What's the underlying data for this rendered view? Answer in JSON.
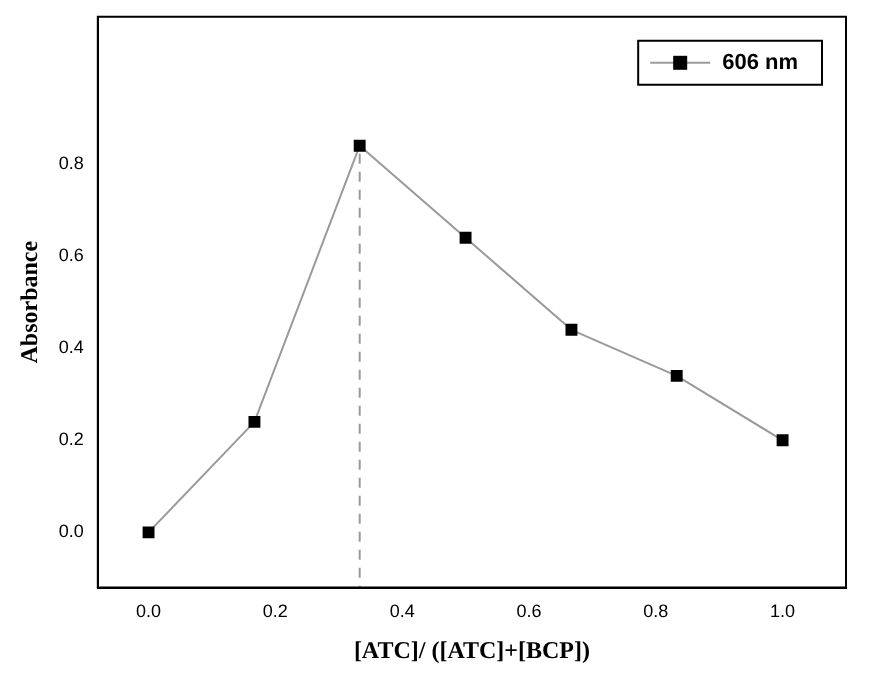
{
  "chart_data": {
    "type": "line",
    "xlabel": "[ATC]/ ([ATC]+[BCP])",
    "ylabel": "Absorbance",
    "x": [
      0,
      0.167,
      0.333,
      0.5,
      0.667,
      0.833,
      1.0
    ],
    "series": [
      {
        "name": "606 nm",
        "color": "#000000",
        "values": [
          0,
          0.24,
          0.84,
          0.64,
          0.44,
          0.34,
          0.2
        ]
      }
    ],
    "xlim": [
      -0.08,
      1.1
    ],
    "ylim": [
      -0.12,
      1.12
    ],
    "xticks": [
      {
        "value": 0,
        "label": "0.0"
      },
      0.2,
      0.4,
      0.6,
      0.8,
      {
        "value": 1,
        "label": "1.0"
      }
    ],
    "yticks": [
      {
        "value": 0,
        "label": "0.0"
      },
      0.2,
      0.4,
      0.6,
      0.8
    ],
    "ref_lines": [
      {
        "axis": "x",
        "value": 0.333,
        "color": "#999999",
        "line_style": "dashed"
      }
    ],
    "marker": "square",
    "line_style": "solid",
    "legend": "top right"
  }
}
